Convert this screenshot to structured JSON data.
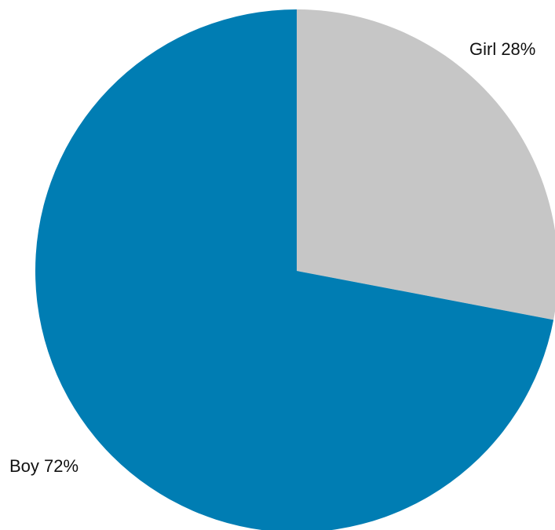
{
  "chart_data": {
    "type": "pie",
    "slices": [
      {
        "label": "Girl 28%",
        "category": "Girl",
        "value": 28,
        "color": "#c6c6c6"
      },
      {
        "label": "Boy 72%",
        "category": "Boy",
        "value": 72,
        "color": "#007db3"
      }
    ],
    "legend": "none"
  }
}
